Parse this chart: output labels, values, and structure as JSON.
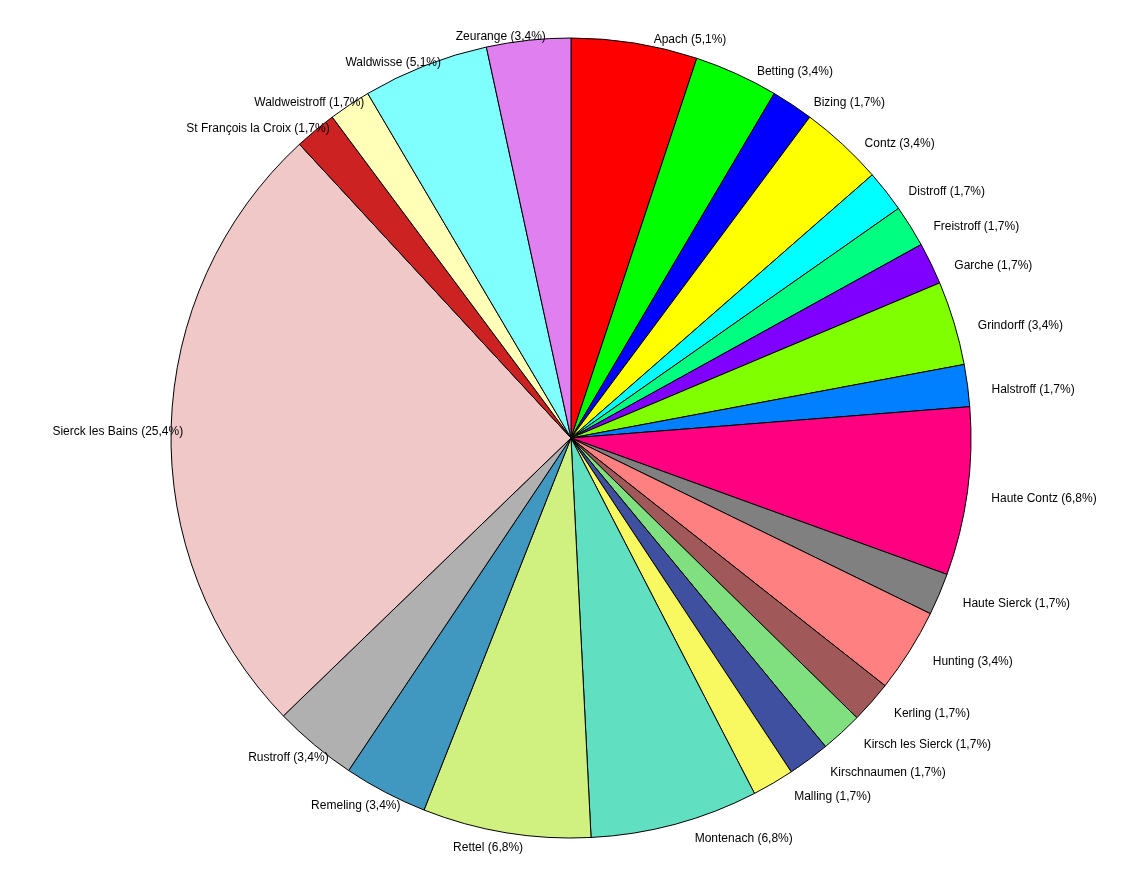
{
  "chart_data": {
    "type": "pie",
    "categories": [
      "Apach",
      "Betting",
      "Bizing",
      "Contz",
      "Distroff",
      "Freistroff",
      "Garche",
      "Grindorff",
      "Halstroff",
      "Haute Contz",
      "Haute Sierck",
      "Hunting",
      "Kerling",
      "Kirsch les Sierck",
      "Kirschnaumen",
      "Malling",
      "Montenach",
      "Rettel",
      "Remeling",
      "Rustroff",
      "Sierck les Bains",
      "St François la Croix",
      "Waldweistroff",
      "Waldwisse",
      "Zeurange"
    ],
    "values": [
      5.1,
      3.4,
      1.7,
      3.4,
      1.7,
      1.7,
      1.7,
      3.4,
      1.7,
      6.8,
      1.7,
      3.4,
      1.7,
      1.7,
      1.7,
      1.7,
      6.8,
      6.8,
      3.4,
      3.4,
      25.4,
      1.7,
      1.7,
      5.1,
      3.4
    ],
    "value_labels": [
      "(5,1%)",
      "(3,4%)",
      "(1,7%)",
      "(3,4%)",
      "(1,7%)",
      "(1,7%)",
      "(1,7%)",
      "(3,4%)",
      "(1,7%)",
      "(6,8%)",
      "(1,7%)",
      "(3,4%)",
      "(1,7%)",
      "(1,7%)",
      "(1,7%)",
      "(1,7%)",
      "(6,8%)",
      "(6,8%)",
      "(3,4%)",
      "(3,4%)",
      "(25,4%)",
      "(1,7%)",
      "(1,7%)",
      "(5,1%)",
      "(3,4%)"
    ],
    "colors": [
      "#ff0000",
      "#00ff00",
      "#0000ff",
      "#ffff00",
      "#00ffff",
      "#00ff80",
      "#8000ff",
      "#80ff00",
      "#0080ff",
      "#ff0080",
      "#808080",
      "#ff8080",
      "#a05858",
      "#80e080",
      "#4050a0",
      "#f8f860",
      "#60e0c0",
      "#d0f080",
      "#4098c0",
      "#b0b0b0",
      "#f0c8c8",
      "#cc2222",
      "#ffffb8",
      "#80ffff",
      "#e080f0"
    ]
  }
}
